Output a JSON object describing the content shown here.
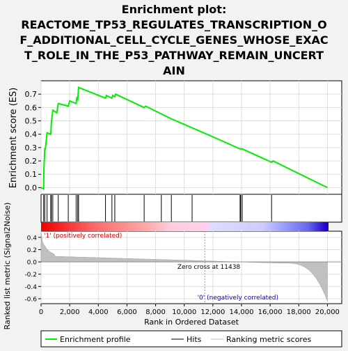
{
  "chart_data": {
    "type": "line",
    "title": "Enrichment plot: REACTOME_TP53_REGULATES_TRANSCRIPTION_OF_ADDITIONAL_CELL_CYCLE_GENES_WHOSE_EXACT_ROLE_IN_THE_P53_PATHWAY_REMAIN_UNCERTAIN",
    "title_lines": [
      "Enrichment plot:",
      "REACTOME_TP53_REGULATES_TRANSCRIPTION_O",
      "F_ADDITIONAL_CELL_CYCLE_GENES_WHOSE_EXAC",
      "T_ROLE_IN_THE_P53_PATHWAY_REMAIN_UNCERT",
      "AIN"
    ],
    "xlabel": "Rank in Ordered Dataset",
    "ylabel_top": "Enrichment score (ES)",
    "ylabel_bottom": "Ranked list metric (Signal2Noise)",
    "xlim": [
      0,
      21000
    ],
    "es_ylim": [
      -0.05,
      0.8
    ],
    "metric_ylim": [
      -0.68,
      0.5
    ],
    "x_ticks": [
      0,
      2000,
      4000,
      6000,
      8000,
      10000,
      12000,
      14000,
      16000,
      18000,
      20000
    ],
    "x_tick_labels": [
      "0",
      "2,000",
      "4,000",
      "6,000",
      "8,000",
      "10,000",
      "12,000",
      "14,000",
      "16,000",
      "18,000",
      "20,000"
    ],
    "es_ticks": [
      0.0,
      0.1,
      0.2,
      0.3,
      0.4,
      0.5,
      0.6,
      0.7
    ],
    "es_tick_labels": [
      "0.0",
      "0.1",
      "0.2",
      "0.3",
      "0.4",
      "0.5",
      "0.6",
      "0.7"
    ],
    "metric_ticks": [
      0.4,
      0.2,
      0.0,
      -0.2,
      -0.4,
      -0.6
    ],
    "metric_tick_labels": [
      "0.4",
      "0.2",
      "0.0",
      "-0.2",
      "-0.4",
      "-0.6"
    ],
    "grid": true,
    "legend_position": "bottom",
    "series": [
      {
        "name": "Enrichment profile",
        "color": "#00ee00",
        "x": [
          0,
          180,
          200,
          260,
          300,
          420,
          680,
          720,
          820,
          1100,
          1200,
          1900,
          2000,
          2450,
          2500,
          2560,
          2620,
          4500,
          4560,
          4950,
          5000,
          5150,
          5200,
          7200,
          7300,
          9000,
          12000,
          13900,
          14050,
          16100,
          16200,
          20000
        ],
        "y": [
          0.0,
          -0.01,
          0.14,
          0.29,
          0.29,
          0.41,
          0.4,
          0.49,
          0.58,
          0.56,
          0.63,
          0.61,
          0.65,
          0.63,
          0.67,
          0.66,
          0.75,
          0.67,
          0.69,
          0.67,
          0.69,
          0.68,
          0.7,
          0.6,
          0.61,
          0.52,
          0.38,
          0.29,
          0.29,
          0.19,
          0.2,
          0.0
        ]
      }
    ],
    "hits": [
      180,
      260,
      420,
      680,
      720,
      820,
      1200,
      1900,
      2450,
      2560,
      2620,
      4500,
      4950,
      5150,
      7200,
      8400,
      9100,
      10550,
      13900,
      13950,
      14050,
      16100
    ],
    "zero_cross": 11438,
    "zero_cross_label": "Zero cross at 11438",
    "pos_label": "'1' (positively correlated)",
    "neg_label": "'0' (negatively correlated)",
    "legend": [
      "Enrichment profile",
      "Hits",
      "Ranking metric scores"
    ],
    "colors": {
      "profile": "#00ee00",
      "hits": "#000000",
      "metric": "#c0c0c0",
      "pos_text": "#cc0000",
      "neg_text": "#0000cc",
      "background": "#f2f2f2",
      "plot_bg": "#ffffff",
      "grid": "#dddddd"
    }
  }
}
